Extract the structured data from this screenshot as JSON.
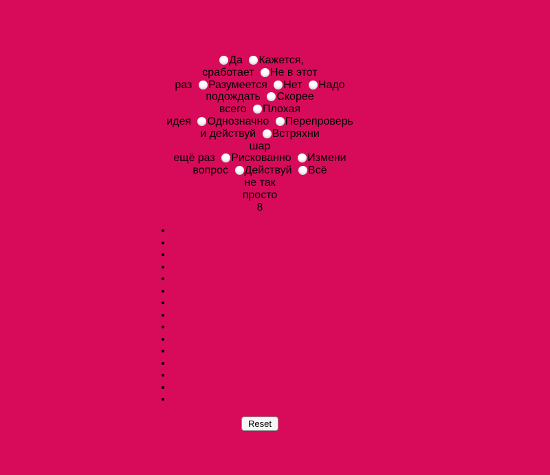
{
  "colors": {
    "background": "#d80b5b",
    "text": "#000000",
    "radio_fill": "#ffffff",
    "bullet": "#000000",
    "button_bg": "#f5f5f5",
    "button_border": "#8e8e8e"
  },
  "ball": {
    "answers": [
      "Да",
      "Кажется, сработает",
      "Не в этот раз",
      "Разумеется",
      "Нет",
      "Надо подождать",
      "Скорее всего",
      "Плохая идея",
      "Однозначно",
      "Перепроверь и действуй",
      "Встряхни шар ещё раз",
      "Рискованно",
      "Измени вопрос",
      "Действуй",
      "Всё не так просто"
    ],
    "number": "8",
    "display_lines": [
      [
        {
          "radio": true
        },
        {
          "text": "Да "
        },
        {
          "radio": true
        },
        {
          "text": "Кажется,"
        }
      ],
      [
        {
          "text": "сработает "
        },
        {
          "radio": true
        },
        {
          "text": "Не в этот"
        }
      ],
      [
        {
          "text": "раз "
        },
        {
          "radio": true
        },
        {
          "text": "Разумеется "
        },
        {
          "radio": true
        },
        {
          "text": "Нет "
        },
        {
          "radio": true
        },
        {
          "text": "Надо"
        }
      ],
      [
        {
          "text": "подождать "
        },
        {
          "radio": true
        },
        {
          "text": "Скорее"
        }
      ],
      [
        {
          "text": "всего "
        },
        {
          "radio": true
        },
        {
          "text": "Плохая"
        }
      ],
      [
        {
          "text": "идея "
        },
        {
          "radio": true
        },
        {
          "text": "Однозначно "
        },
        {
          "radio": true
        },
        {
          "text": "Перепроверь"
        }
      ],
      [
        {
          "text": "и действуй "
        },
        {
          "radio": true
        },
        {
          "text": "Встряхни"
        }
      ],
      [
        {
          "text": "шар"
        }
      ],
      [
        {
          "text": "ещё раз "
        },
        {
          "radio": true
        },
        {
          "text": "Рискованно "
        },
        {
          "radio": true
        },
        {
          "text": "Измени"
        }
      ],
      [
        {
          "text": "вопрос "
        },
        {
          "radio": true
        },
        {
          "text": "Действуй "
        },
        {
          "radio": true
        },
        {
          "text": "Всё"
        }
      ],
      [
        {
          "text": "не так"
        }
      ],
      [
        {
          "text": "просто"
        }
      ],
      [
        {
          "text": "8",
          "name": "ball-number"
        }
      ]
    ]
  },
  "results_list": {
    "item_count": 15
  },
  "reset_button": {
    "label": "Reset"
  }
}
